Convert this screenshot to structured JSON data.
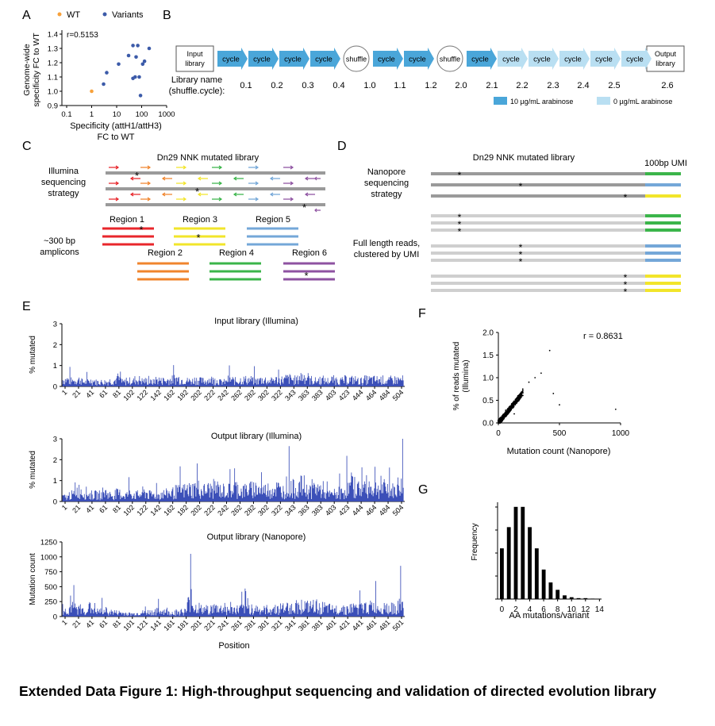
{
  "caption": "Extended Data Figure 1: High-throughput sequencing and validation of directed evolution library",
  "panels": {
    "A": {
      "label": "A",
      "legend": [
        "WT",
        "Variants"
      ],
      "r_text": "r=0.5153",
      "ylabel": [
        "Genome-wide",
        "specificity FC to WT"
      ],
      "xlabel": [
        "Specificity (attH1/attH3)",
        "FC to WT"
      ],
      "yticks": [
        "1.4",
        "1.3",
        "1.2",
        "1.1",
        "1.0",
        "0.9"
      ],
      "xticks": [
        "0.1",
        "1",
        "10",
        "100",
        "1000"
      ]
    },
    "B": {
      "label": "B",
      "input_box": [
        "Input",
        "library"
      ],
      "output_box": [
        "Output",
        "library"
      ],
      "cycle_label": "cycle",
      "shuffle_label": "shuffle",
      "name_title": [
        "Library name",
        "(shuffle.cycle):"
      ],
      "names": [
        "0.1",
        "0.2",
        "0.3",
        "0.4",
        "1.0",
        "1.1",
        "1.2",
        "2.0",
        "2.1",
        "2.2",
        "2.3",
        "2.4",
        "2.5",
        "2.6"
      ],
      "legend": [
        "10 µg/mL arabinose",
        "0 µg/mL arabinose"
      ],
      "colors": {
        "dark": "#4aa6d9",
        "light": "#b9dff2"
      }
    },
    "C": {
      "label": "C",
      "title": "Dn29 NNK mutated library",
      "strategy": [
        "Illumina",
        "sequencing",
        "strategy"
      ],
      "amplicon": [
        "~300 bp",
        "amplicons"
      ],
      "regions": [
        "Region 1",
        "Region 2",
        "Region 3",
        "Region 4",
        "Region 5",
        "Region 6"
      ],
      "region_colors": [
        "#e8262b",
        "#f0852d",
        "#f2e52a",
        "#3bb54a",
        "#74a7d8",
        "#8e52a1"
      ],
      "star": "*"
    },
    "D": {
      "label": "D",
      "title": "Dn29 NNK mutated library",
      "umi": "100bp UMI",
      "strategy": [
        "Nanopore",
        "sequencing",
        "strategy"
      ],
      "cluster": [
        "Full length reads,",
        "clustered by UMI"
      ],
      "star": "*"
    },
    "E": {
      "label": "E",
      "plots": [
        {
          "title": "Input library (Illumina)",
          "ylabel": "% mutated",
          "yticks": [
            "3",
            "2",
            "1",
            "0"
          ]
        },
        {
          "title": "Output library (Illumina)",
          "ylabel": "% mutated",
          "yticks": [
            "3",
            "2",
            "1",
            "0"
          ]
        },
        {
          "title": "Output library (Nanopore)",
          "ylabel": "Mutation count",
          "yticks": [
            "1250",
            "1000",
            "750",
            "500",
            "250",
            "0"
          ]
        }
      ],
      "xticks_12": [
        "1",
        "21",
        "41",
        "61",
        "81",
        "102",
        "122",
        "142",
        "162",
        "182",
        "202",
        "222",
        "242",
        "262",
        "282",
        "302",
        "322",
        "343",
        "363",
        "383",
        "403",
        "423",
        "444",
        "464",
        "484",
        "504"
      ],
      "xticks_3": [
        "1",
        "21",
        "41",
        "61",
        "81",
        "101",
        "121",
        "141",
        "161",
        "181",
        "201",
        "221",
        "241",
        "261",
        "281",
        "301",
        "321",
        "341",
        "361",
        "381",
        "401",
        "421",
        "441",
        "461",
        "481",
        "501"
      ],
      "xlabel": "Position"
    },
    "F": {
      "label": "F",
      "r_text": "r = 0.8631",
      "ylabel": [
        "% of reads mutated",
        "(Illumina)"
      ],
      "xlabel": "Mutation count (Nanopore)",
      "yticks": [
        "2.0",
        "1.5",
        "1.0",
        "0.5",
        "0.0"
      ],
      "xticks": [
        "0",
        "500",
        "1000"
      ]
    },
    "G": {
      "label": "G",
      "ylabel": "Frequency",
      "xlabel": "AA mutations/variant",
      "xticks": [
        "0",
        "2",
        "4",
        "6",
        "8",
        "10",
        "12",
        "14"
      ]
    }
  },
  "chart_data": [
    {
      "type": "scatter",
      "panel": "A",
      "xlabel": "Specificity (attH1/attH3) FC to WT",
      "ylabel": "Genome-wide specificity FC to WT",
      "xscale": "log",
      "xlim": [
        0.1,
        1000
      ],
      "ylim": [
        0.9,
        1.4
      ],
      "series": [
        {
          "name": "WT",
          "color": "#f7a13b",
          "x": [
            1
          ],
          "y": [
            1.0
          ]
        },
        {
          "name": "Variants",
          "color": "#3c5ba9",
          "x": [
            3,
            4,
            12,
            30,
            45,
            55,
            70,
            80,
            90,
            110,
            130,
            45,
            60,
            200
          ],
          "y": [
            1.05,
            1.13,
            1.19,
            1.25,
            1.32,
            1.1,
            1.32,
            1.1,
            0.97,
            1.19,
            1.21,
            1.09,
            1.24,
            1.3
          ]
        }
      ]
    },
    {
      "type": "bar",
      "panel": "E",
      "title": "Input library (Illumina)",
      "ylabel": "% mutated",
      "ylim": [
        0,
        3
      ],
      "x_range": [
        1,
        520
      ],
      "values_sampled_every_10": [
        0.3,
        0.25,
        0.3,
        0.2,
        0.25,
        0.2,
        0.2,
        0.25,
        0.3,
        0.2,
        0.25,
        0.3,
        0.25,
        0.2,
        0.3,
        0.25,
        0.3,
        0.35,
        0.3,
        0.25,
        0.3,
        0.25,
        0.3,
        0.25,
        0.2,
        0.3,
        0.25,
        0.3,
        0.3,
        0.25,
        0.3,
        0.25,
        0.3,
        0.3,
        0.35,
        0.3,
        0.45,
        0.3,
        0.25,
        0.3,
        0.25,
        0.3,
        0.25,
        0.3,
        0.3,
        0.25,
        0.3,
        0.3,
        0.3,
        0.25,
        0.3,
        0.3
      ]
    },
    {
      "type": "bar",
      "panel": "E",
      "title": "Output library (Illumina)",
      "ylabel": "% mutated",
      "ylim": [
        0,
        3
      ],
      "x_range": [
        1,
        520
      ],
      "values_sampled_every_10": [
        0.2,
        0.3,
        0.5,
        0.4,
        0.3,
        0.3,
        0.4,
        0.3,
        0.35,
        0.3,
        0.35,
        0.3,
        0.4,
        0.3,
        0.3,
        0.35,
        0.4,
        0.45,
        0.5,
        0.55,
        0.6,
        0.5,
        0.55,
        0.6,
        0.5,
        0.5,
        0.6,
        0.5,
        0.55,
        0.6,
        0.5,
        0.55,
        0.6,
        0.5,
        0.7,
        0.6,
        0.7,
        0.5,
        0.6,
        0.55,
        0.3,
        0.35,
        0.4,
        0.6,
        0.7,
        0.6,
        0.7,
        0.6,
        0.55,
        0.6,
        0.5,
        0.7
      ],
      "peaks": [
        {
          "x": 345,
          "y": 2.65
        },
        {
          "x": 518,
          "y": 3.0
        }
      ]
    },
    {
      "type": "bar",
      "panel": "E",
      "title": "Output library (Nanopore)",
      "ylabel": "Mutation count",
      "ylim": [
        0,
        1250
      ],
      "x_range": [
        1,
        520
      ],
      "values_sampled_every_10": [
        90,
        140,
        120,
        100,
        130,
        80,
        90,
        70,
        60,
        50,
        40,
        50,
        60,
        70,
        80,
        90,
        60,
        70,
        80,
        200,
        140,
        110,
        120,
        130,
        120,
        100,
        110,
        120,
        130,
        120,
        100,
        110,
        120,
        130,
        140,
        160,
        170,
        150,
        160,
        140,
        120,
        110,
        130,
        120,
        140,
        130,
        150,
        160,
        140,
        150,
        130,
        170
      ],
      "peaks": [
        {
          "x": 195,
          "y": 1050
        },
        {
          "x": 515,
          "y": 850
        }
      ]
    },
    {
      "type": "scatter",
      "panel": "F",
      "xlabel": "Mutation count (Nanopore)",
      "ylabel": "% of reads mutated (Illumina)",
      "xlim": [
        0,
        1000
      ],
      "ylim": [
        0,
        2.0
      ],
      "r": 0.8631,
      "x": [
        20,
        40,
        60,
        80,
        100,
        120,
        140,
        160,
        180,
        200,
        250,
        300,
        350,
        420,
        450,
        500,
        960,
        60,
        90,
        130
      ],
      "y": [
        0.05,
        0.12,
        0.2,
        0.3,
        0.35,
        0.45,
        0.5,
        0.6,
        0.65,
        0.75,
        0.9,
        1.0,
        1.1,
        1.6,
        0.65,
        0.4,
        0.3,
        0.28,
        0.3,
        0.2
      ]
    },
    {
      "type": "bar",
      "panel": "G",
      "xlabel": "AA mutations/variant",
      "ylabel": "Frequency",
      "categories": [
        "0",
        "1",
        "2",
        "3",
        "4",
        "5",
        "6",
        "7",
        "8",
        "9",
        "10",
        "11",
        "12",
        "13",
        "14"
      ],
      "values": [
        0.55,
        0.78,
        1.0,
        1.0,
        0.78,
        0.55,
        0.32,
        0.18,
        0.1,
        0.04,
        0.02,
        0.01,
        0.01,
        0.005,
        0.003
      ],
      "ylim": [
        0,
        1.05
      ]
    }
  ]
}
